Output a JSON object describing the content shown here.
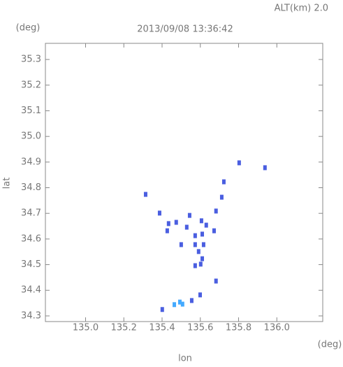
{
  "chart_data": {
    "type": "scatter",
    "title": "2013/09/08 13:36:42",
    "subtitle": "ALT(km)  2.0",
    "y_unit": "(deg)",
    "x_unit": "(deg)",
    "x_label": "lon",
    "y_label": "lat",
    "xlim": [
      134.79,
      136.24
    ],
    "ylim": [
      34.278,
      35.363
    ],
    "xticks": [
      {
        "value": 135,
        "label": "135.0"
      },
      135.2,
      135.4,
      135.6,
      135.8,
      {
        "value": 136,
        "label": "136.0"
      }
    ],
    "yticks": [
      {
        "value": 34.3,
        "label": "34.3"
      },
      34.4,
      34.5,
      34.6,
      34.7,
      34.8,
      34.9,
      {
        "value": 35,
        "label": "35.0"
      },
      35.1,
      35.2,
      35.3
    ],
    "x": [
      135.803,
      135.938,
      135.723,
      135.712,
      135.314,
      135.387,
      135.682,
      135.544,
      135.434,
      135.474,
      135.427,
      135.529,
      135.606,
      135.631,
      135.672,
      135.573,
      135.61,
      135.5,
      135.573,
      135.617,
      135.591,
      135.61,
      135.602,
      135.573,
      135.682,
      135.599,
      135.555,
      135.493,
      135.464,
      135.507,
      135.401
    ],
    "values": [
      34.897,
      34.878,
      34.823,
      34.763,
      34.774,
      34.701,
      34.709,
      34.692,
      34.66,
      34.665,
      34.632,
      34.646,
      34.671,
      34.654,
      34.632,
      34.613,
      34.619,
      34.578,
      34.578,
      34.578,
      34.551,
      34.523,
      34.502,
      34.496,
      34.436,
      34.382,
      34.36,
      34.354,
      34.344,
      34.346,
      34.325
    ],
    "colors": [
      "#4a5ee0",
      "#4a5ee0",
      "#4a5ee0",
      "#4a5ee0",
      "#4a5ee0",
      "#4a5ee0",
      "#4a5ee0",
      "#4a5ee0",
      "#4a5ee0",
      "#4a5ee0",
      "#4a5ee0",
      "#4a5ee0",
      "#4a5ee0",
      "#4a5ee0",
      "#4a5ee0",
      "#4a5ee0",
      "#4a5ee0",
      "#4a5ee0",
      "#4a5ee0",
      "#4a5ee0",
      "#4a5ee0",
      "#4a5ee0",
      "#4a5ee0",
      "#4a5ee0",
      "#4a5ee0",
      "#4a5ee0",
      "#4a5ee0",
      "#44aaff",
      "#44aaff",
      "#44aaff",
      "#4a5ee0"
    ]
  }
}
